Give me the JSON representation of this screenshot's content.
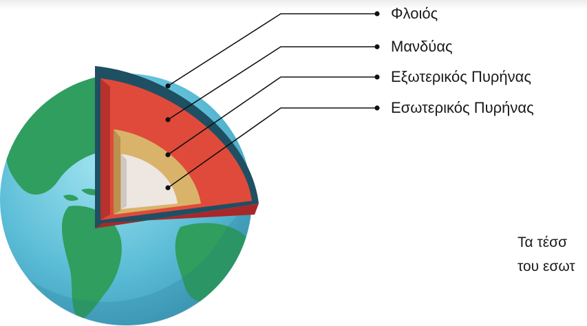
{
  "layers": {
    "crust": "Φλοιός",
    "mantle": "Μανδύας",
    "outer_core": "Εξωτερικός Πυρήνας",
    "inner_core": "Εσωτερικός Πυρήνας"
  },
  "caption": {
    "line1": "Τα τέσσ",
    "line2": "του εσωτ"
  },
  "colors": {
    "ocean": "#5bbcd6",
    "land": "#2f9e5e",
    "crust_rim": "#1f4f63",
    "mantle": "#e04a3a",
    "mantle_dark": "#a8282a",
    "outer_core": "#d9b36a",
    "inner_core": "#ede6e1",
    "leader_line": "#111111"
  }
}
